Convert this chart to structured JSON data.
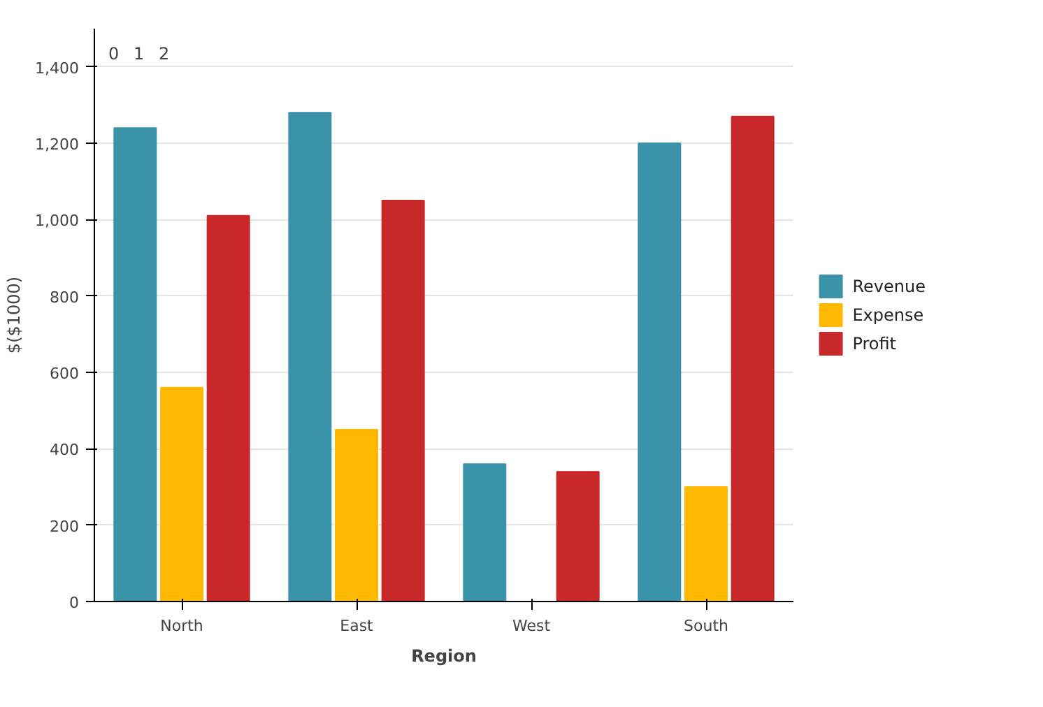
{
  "chart_data": {
    "type": "bar",
    "categories": [
      "North",
      "East",
      "West",
      "South"
    ],
    "series": [
      {
        "name": "Revenue",
        "color": "#3a93a8",
        "values": [
          1240,
          1280,
          360,
          1200
        ]
      },
      {
        "name": "Expense",
        "color": "#ffb900",
        "values": [
          560,
          450,
          null,
          300
        ]
      },
      {
        "name": "Profit",
        "color": "#c8282a",
        "values": [
          1010,
          1050,
          340,
          1270
        ]
      }
    ],
    "xlabel": "Region",
    "ylabel": "$($1000)",
    "ylim": [
      0,
      1500
    ],
    "yticks": [
      0,
      {
        "value": 200,
        "label": "200"
      },
      {
        "value": 400,
        "label": "400"
      },
      {
        "value": 600,
        "label": "600"
      },
      {
        "value": 800,
        "label": "800"
      },
      {
        "value": 1000,
        "label": "1,000"
      },
      {
        "value": 1200,
        "label": "1,200"
      },
      {
        "value": 1400,
        "label": "1,400"
      }
    ],
    "annotations": [
      "0",
      "1",
      "2"
    ],
    "grid": "y",
    "legend": "right"
  }
}
